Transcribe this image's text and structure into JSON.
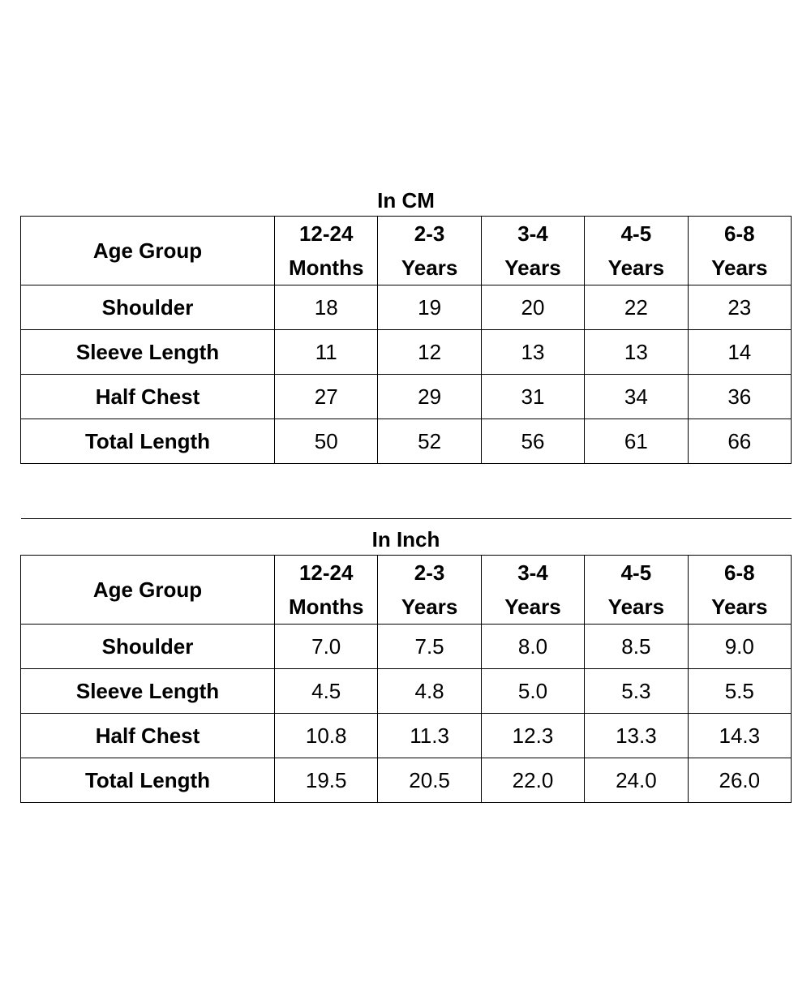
{
  "tables": [
    {
      "caption": "In CM",
      "header": {
        "label": "Age Group",
        "columns": [
          {
            "line1": "12-24",
            "line2": "Months"
          },
          {
            "line1": "2-3",
            "line2": "Years"
          },
          {
            "line1": "3-4",
            "line2": "Years"
          },
          {
            "line1": "4-5",
            "line2": "Years"
          },
          {
            "line1": "6-8",
            "line2": "Years"
          }
        ]
      },
      "rows": [
        {
          "label": "Shoulder",
          "values": [
            "18",
            "19",
            "20",
            "22",
            "23"
          ]
        },
        {
          "label": "Sleeve Length",
          "values": [
            "11",
            "12",
            "13",
            "13",
            "14"
          ]
        },
        {
          "label": "Half Chest",
          "values": [
            "27",
            "29",
            "31",
            "34",
            "36"
          ]
        },
        {
          "label": "Total Length",
          "values": [
            "50",
            "52",
            "56",
            "61",
            "66"
          ]
        }
      ]
    },
    {
      "caption": "In Inch",
      "header": {
        "label": "Age Group",
        "columns": [
          {
            "line1": "12-24",
            "line2": "Months"
          },
          {
            "line1": "2-3",
            "line2": "Years"
          },
          {
            "line1": "3-4",
            "line2": "Years"
          },
          {
            "line1": "4-5",
            "line2": "Years"
          },
          {
            "line1": "6-8",
            "line2": "Years"
          }
        ]
      },
      "rows": [
        {
          "label": "Shoulder",
          "values": [
            "7.0",
            "7.5",
            "8.0",
            "8.5",
            "9.0"
          ]
        },
        {
          "label": "Sleeve Length",
          "values": [
            "4.5",
            "4.8",
            "5.0",
            "5.3",
            "5.5"
          ]
        },
        {
          "label": "Half Chest",
          "values": [
            "10.8",
            "11.3",
            "12.3",
            "13.3",
            "14.3"
          ]
        },
        {
          "label": "Total Length",
          "values": [
            "19.5",
            "20.5",
            "22.0",
            "24.0",
            "26.0"
          ]
        }
      ]
    }
  ]
}
